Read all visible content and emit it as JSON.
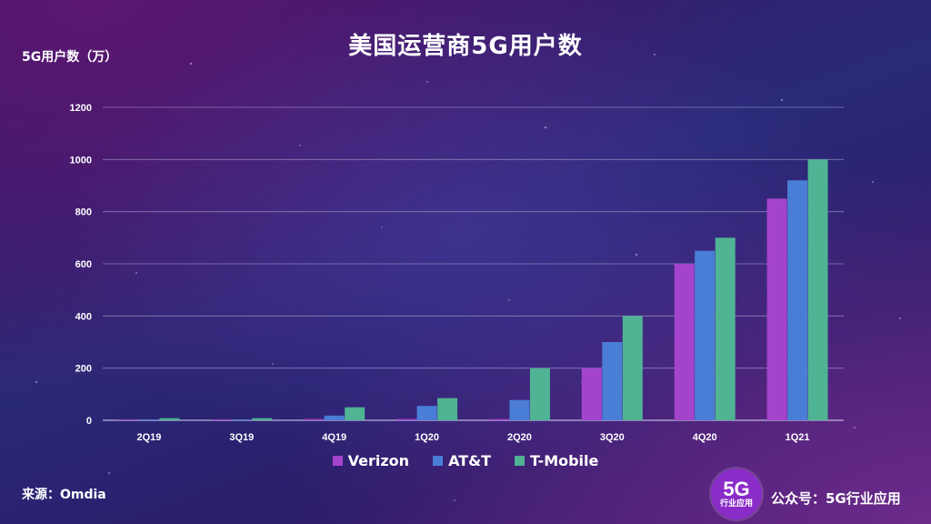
{
  "title": "美国运营商5G用户数",
  "unit_label": "5G用户数（万）",
  "source": "来源：Omdia",
  "logo": {
    "big": "5G",
    "small": "行业应用"
  },
  "account": "公众号：5G行业应用",
  "colors": {
    "verizon": "#a444cc",
    "att": "#4a7ed6",
    "tmobile": "#4fb394",
    "grid": "#c9c4e6",
    "text": "#ffffff"
  },
  "chart_data": {
    "type": "bar",
    "categories": [
      "2Q19",
      "3Q19",
      "4Q19",
      "1Q20",
      "2Q20",
      "3Q20",
      "4Q20",
      "1Q21"
    ],
    "series": [
      {
        "name": "Verizon",
        "values": [
          2,
          2,
          5,
          5,
          5,
          200,
          600,
          850
        ]
      },
      {
        "name": "AT&T",
        "values": [
          3,
          3,
          18,
          55,
          78,
          300,
          650,
          920
        ]
      },
      {
        "name": "T-Mobile",
        "values": [
          8,
          8,
          50,
          85,
          200,
          400,
          700,
          1000
        ]
      }
    ],
    "ylim": [
      0,
      1200
    ],
    "yticks": [
      0,
      200,
      400,
      600,
      800,
      1000,
      1200
    ],
    "ylabel": "5G用户数（万）",
    "grid": true,
    "legend": "bottom"
  }
}
